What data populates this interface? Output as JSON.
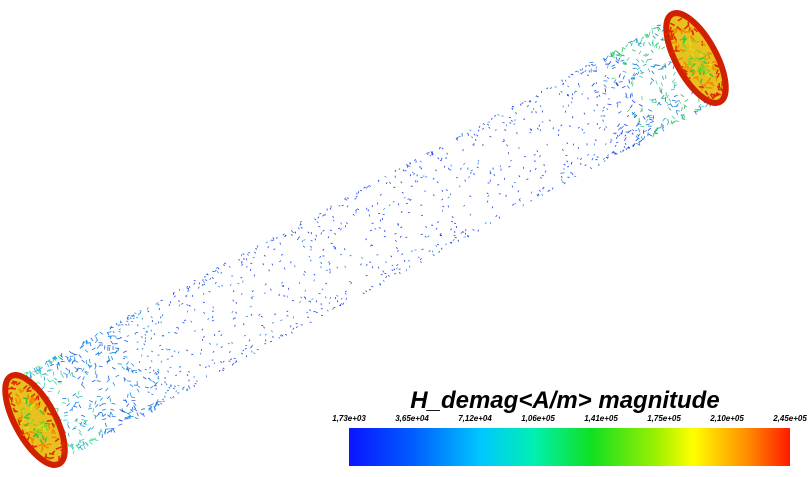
{
  "legend": {
    "title": "H_demag<A/m> magnitude",
    "ticks": [
      "1,73e+03",
      "3,65e+04",
      "7,12e+04",
      "1,06e+05",
      "1,41e+05",
      "1,75e+05",
      "2,10e+05",
      "2,45e+05"
    ]
  }
}
